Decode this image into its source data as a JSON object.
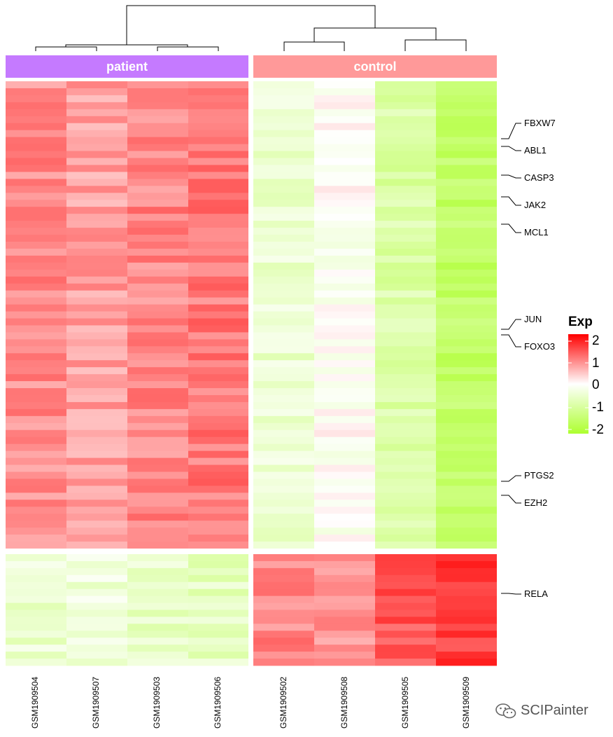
{
  "chart_data": {
    "type": "heatmap",
    "legend": {
      "title": "Exp",
      "ticks": [
        "2",
        "1",
        "0",
        "-1",
        "-2"
      ],
      "range": [
        -2,
        2
      ],
      "colors": {
        "low": "#adff2f",
        "mid": "#ffffff",
        "high": "#ff0000"
      }
    },
    "groups": [
      {
        "name": "patient",
        "color": "#c57aff",
        "samples": [
          "GSM1909504",
          "GSM1909507",
          "GSM1909503",
          "GSM1909506"
        ]
      },
      {
        "name": "control",
        "color": "#ff9999",
        "samples": [
          "GSM1909502",
          "GSM1909508",
          "GSM1909505",
          "GSM1909509"
        ]
      }
    ],
    "labeled_genes": [
      "FBXW7",
      "ABL1",
      "CASP3",
      "JAK2",
      "MCL1",
      "JUN",
      "FOXO3",
      "PTGS2",
      "EZH2",
      "RELA"
    ],
    "row_clusters": [
      {
        "rows": 67,
        "patient": [
          0.9,
          0.75,
          0.95,
          1.05
        ],
        "control": [
          -0.45,
          -0.05,
          -0.85,
          -1.45
        ]
      },
      {
        "rows": 16,
        "patient": [
          -0.45,
          -0.35,
          -0.55,
          -0.6
        ],
        "control": [
          0.95,
          0.85,
          1.3,
          1.55
        ]
      }
    ]
  },
  "watermark": {
    "text": "SCIPainter"
  }
}
